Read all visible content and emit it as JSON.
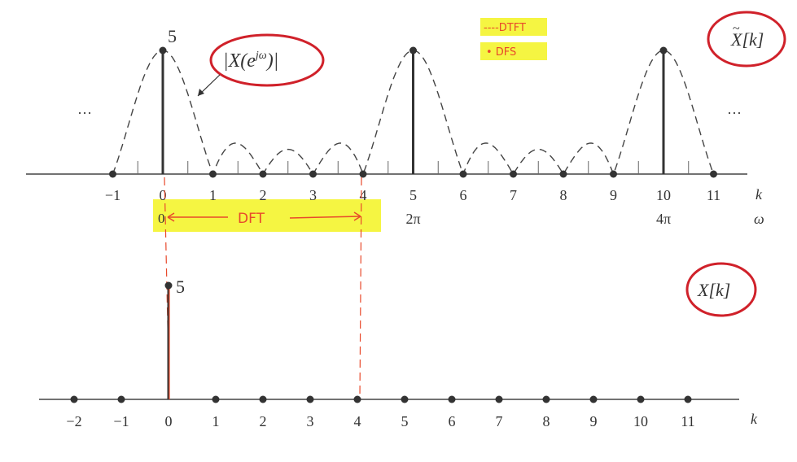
{
  "top_plot": {
    "k_values": [
      -1,
      0,
      1,
      2,
      3,
      4,
      5,
      6,
      7,
      8,
      9,
      10,
      11
    ],
    "k_tick_labels": [
      "−1",
      "0",
      "1",
      "2",
      "3",
      "4",
      "5",
      "6",
      "7",
      "8",
      "9",
      "10",
      "11"
    ],
    "stems": [
      {
        "k": 0,
        "value": 5
      },
      {
        "k": 5,
        "value": 5
      },
      {
        "k": 10,
        "value": 5
      }
    ],
    "stem_value_label": "5",
    "k_axis_label": "k",
    "omega_axis_label": "ω",
    "omega_labels": [
      {
        "k": 5,
        "text": "2π"
      },
      {
        "k": 10,
        "text": "4π"
      }
    ],
    "ellipsis_left": "···",
    "ellipsis_right": "···",
    "dtft_label_main": "|X(e",
    "dtft_label_sup": "jω",
    "dtft_label_end": ")|",
    "dfs_title_main": "X",
    "dfs_title_tilde": "~",
    "dfs_title_index": "[k]"
  },
  "bottom_plot": {
    "k_values": [
      -2,
      -1,
      0,
      1,
      2,
      3,
      4,
      5,
      6,
      7,
      8,
      9,
      10,
      11
    ],
    "k_tick_labels": [
      "−2",
      "−1",
      "0",
      "1",
      "2",
      "3",
      "4",
      "5",
      "6",
      "7",
      "8",
      "9",
      "10",
      "11"
    ],
    "stems": [
      {
        "k": 0,
        "value": 5
      }
    ],
    "stem_value_label": "5",
    "k_axis_label": "k",
    "title": "X[k]"
  },
  "annotations": {
    "legend_dtft": "----DTFT",
    "legend_dfs": "• DFS",
    "dft_range_label": "DFT",
    "dft_range_start": "0",
    "colors": {
      "highlight": "#f5f542",
      "ink": "#e8492b",
      "circle": "#d0212a",
      "axis": "#444444",
      "stem": "#333333"
    }
  }
}
